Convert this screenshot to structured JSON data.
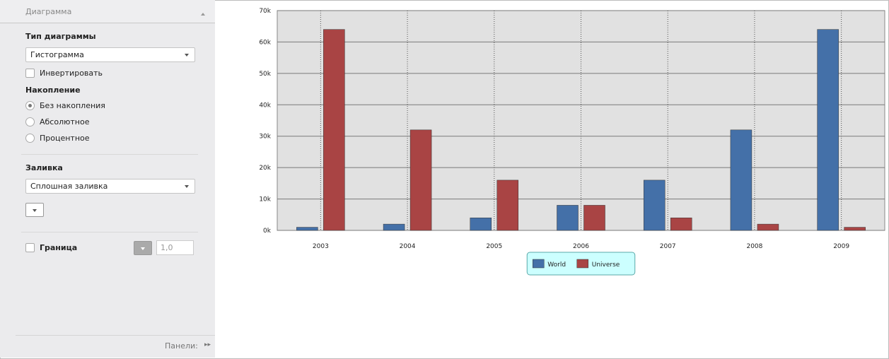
{
  "panel": {
    "title": "Диаграмма",
    "chart_type_label": "Тип диаграммы",
    "chart_type_value": "Гистограмма",
    "invert": "Инвертировать",
    "accumulation_label": "Накопление",
    "accumulation_options": [
      "Без накопления",
      "Абсолютное",
      "Процентное"
    ],
    "fill_label": "Заливка",
    "fill_value": "Сплошная заливка",
    "border_label": "Граница",
    "border_width": "1,0",
    "footer": "Панели:"
  },
  "chart_data": {
    "type": "bar",
    "categories": [
      "2003",
      "2004",
      "2005",
      "2006",
      "2007",
      "2008",
      "2009"
    ],
    "series": [
      {
        "name": "World",
        "color": "#4470a8",
        "values": [
          1000,
          2000,
          4000,
          8000,
          16000,
          32000,
          64000
        ]
      },
      {
        "name": "Universe",
        "color": "#a94444",
        "values": [
          64000,
          32000,
          16000,
          8000,
          4000,
          2000,
          1000
        ]
      }
    ],
    "ylim": [
      0,
      70000
    ],
    "yticks": [
      {
        "value": 0,
        "label": "0k"
      },
      {
        "value": 10000,
        "label": "10k"
      },
      {
        "value": 20000,
        "label": "20k"
      },
      {
        "value": 30000,
        "label": "30k"
      },
      {
        "value": 40000,
        "label": "40k"
      },
      {
        "value": 50000,
        "label": "50k"
      },
      {
        "value": 60000,
        "label": "60k"
      },
      {
        "value": 70000,
        "label": "70k"
      }
    ],
    "grid": true,
    "legend": "bottom"
  }
}
